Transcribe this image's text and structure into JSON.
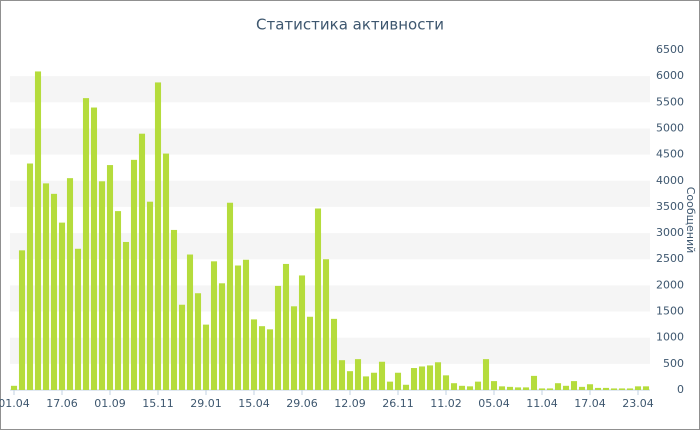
{
  "chart_data": {
    "type": "bar",
    "title": "Статистика активности",
    "y_label": "Сообщений",
    "color": "#b5dc3c",
    "grid_bands": true,
    "categories": [
      "01.04",
      null,
      null,
      null,
      null,
      null,
      "17.06",
      null,
      null,
      null,
      null,
      null,
      "01.09",
      null,
      null,
      null,
      null,
      null,
      "15.11",
      null,
      null,
      null,
      null,
      null,
      "29.01",
      null,
      null,
      null,
      null,
      null,
      "15.04",
      null,
      null,
      null,
      null,
      null,
      "29.06",
      null,
      null,
      null,
      null,
      null,
      "12.09",
      null,
      null,
      null,
      null,
      null,
      "26.11",
      null,
      null,
      null,
      null,
      null,
      "11.02",
      null,
      null,
      null,
      null,
      null,
      "05.04",
      null,
      null,
      null,
      null,
      null,
      "11.04",
      null,
      null,
      null,
      null,
      null,
      "17.04",
      null,
      null,
      null,
      null,
      null,
      "23.04",
      null
    ],
    "values": [
      80,
      2670,
      4330,
      6090,
      3950,
      3750,
      3200,
      4050,
      2700,
      5580,
      5400,
      3990,
      4300,
      3420,
      2830,
      4400,
      4900,
      3600,
      5880,
      4520,
      3060,
      1630,
      2590,
      1850,
      1250,
      2460,
      2040,
      3580,
      2380,
      2490,
      1350,
      1220,
      1160,
      1990,
      2410,
      1600,
      2190,
      1400,
      3470,
      2500,
      1360,
      570,
      360,
      590,
      260,
      330,
      540,
      160,
      330,
      100,
      420,
      450,
      470,
      530,
      280,
      130,
      80,
      70,
      160,
      590,
      170,
      70,
      60,
      50,
      50,
      270,
      30,
      30,
      130,
      80,
      170,
      60,
      110,
      40,
      40,
      30,
      30,
      30,
      70,
      70
    ],
    "ylim": [
      0,
      6500
    ],
    "yticks": [
      0,
      500,
      1000,
      1500,
      2000,
      2500,
      3000,
      3500,
      4000,
      4500,
      5000,
      5500,
      6000,
      6500
    ]
  }
}
